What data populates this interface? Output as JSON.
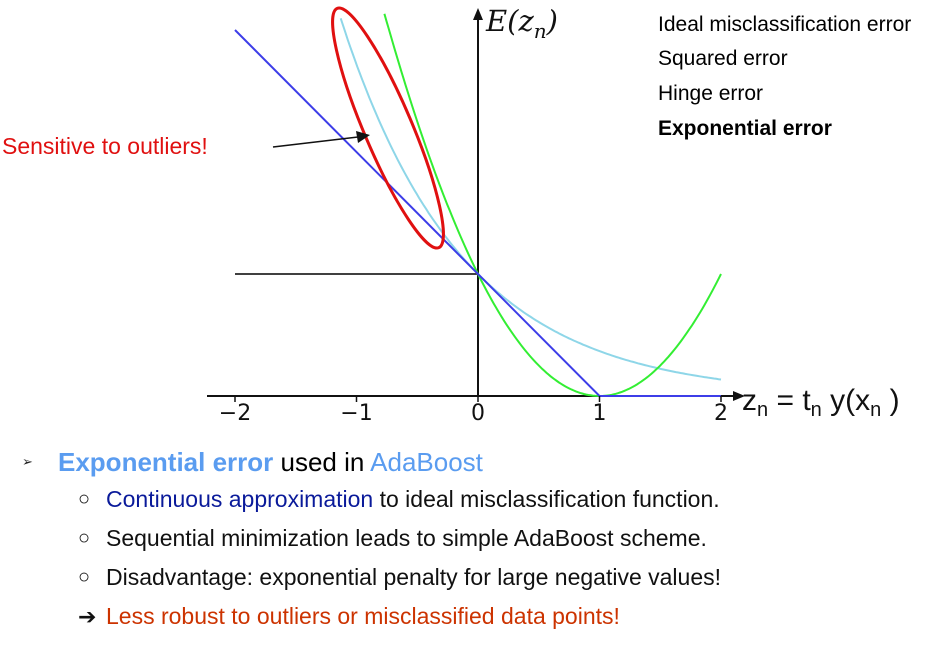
{
  "chart_data": {
    "type": "line",
    "ylabel": "E(z_n)",
    "xlabel": "z_n = t_n y(x_n)",
    "xlim": [
      -2,
      2
    ],
    "xticks": [
      -2,
      -1,
      0,
      1,
      2
    ],
    "x_tick_labels": [
      "−2",
      "−1",
      "0",
      "1",
      "2"
    ],
    "grid": false,
    "legend_position": "top-right",
    "series": [
      {
        "name": "Ideal misclassification error",
        "color": "#000000",
        "x": [
          -2,
          0,
          0,
          2
        ],
        "y": [
          1,
          1,
          0,
          0
        ]
      },
      {
        "name": "Squared error",
        "color": "#33ee33",
        "formula": "(z-1)^2",
        "x": [
          -0.77,
          2
        ],
        "y": [
          3.13,
          1
        ]
      },
      {
        "name": "Hinge error",
        "color": "#3d3de8",
        "formula": "max(0, 1-z)",
        "x": [
          -2,
          1,
          2
        ],
        "y": [
          3,
          0,
          0
        ]
      },
      {
        "name": "Exponential error",
        "color": "#8ed6e8",
        "formula": "exp(-z)",
        "x": [
          -1.13,
          2
        ],
        "y": [
          3.1,
          0.135
        ]
      }
    ],
    "annotations": [
      {
        "text": "Sensitive to outliers!",
        "color": "#e01010"
      }
    ]
  },
  "legend": {
    "items": [
      {
        "label": "Ideal misclassification error",
        "color": "#000000"
      },
      {
        "label": "Squared error",
        "color": "#33ee33"
      },
      {
        "label": "Hinge error",
        "color": "#0a1a9a"
      },
      {
        "label": "Exponential error",
        "color": "#5a9cf0"
      }
    ]
  },
  "axis_labels": {
    "y_main": "E(z",
    "y_sub": "n",
    "y_close": ")",
    "x_z": "z",
    "x_n1": "n",
    "x_eq_t": " = t",
    "x_n2": "n",
    "x_yx": " y(x",
    "x_n3": "n",
    "x_close": " )"
  },
  "annotation_text": "Sensitive to outliers!",
  "bullets": {
    "main": {
      "marker": "➢",
      "part1": "Exponential error",
      "part2": " used in ",
      "part3": "AdaBoost"
    },
    "sub": [
      {
        "marker": "○",
        "highlight": "Continuous approximation",
        "rest": " to ideal misclassification function."
      },
      {
        "marker": "○",
        "highlight": "",
        "rest": "Sequential minimization leads to simple AdaBoost scheme."
      },
      {
        "marker": "○",
        "highlight": "",
        "rest": "Disadvantage: exponential penalty for large negative values!"
      }
    ],
    "arrow": {
      "marker": "➔",
      "text": "Less robust to outliers or misclassified data points!"
    }
  }
}
